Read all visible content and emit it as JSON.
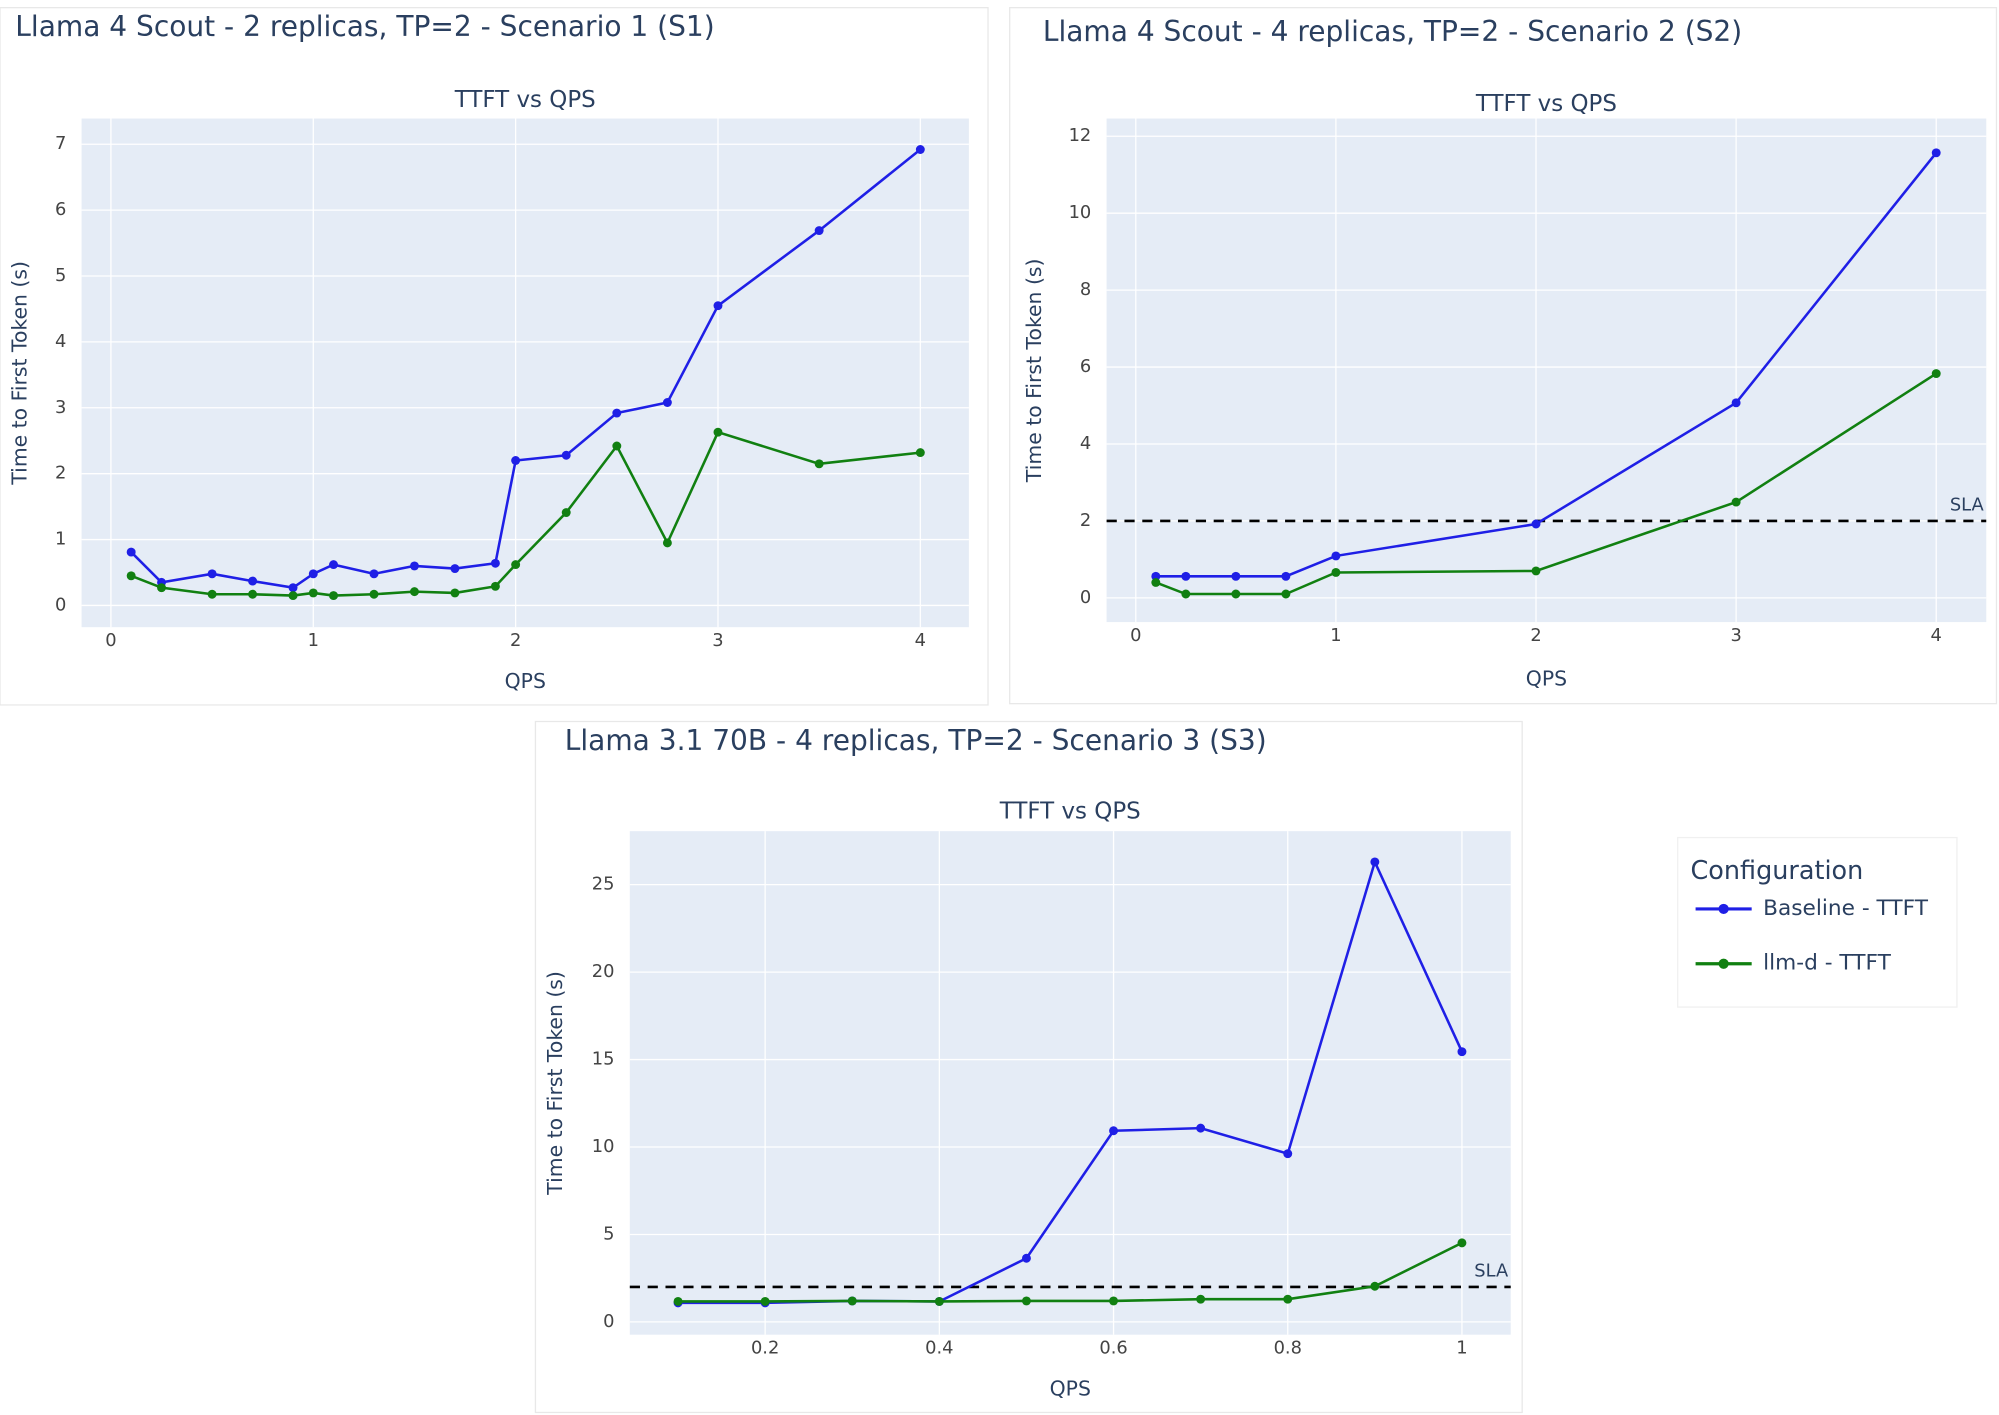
{
  "chart_data": [
    {
      "type": "line",
      "panel_title": "Llama 4 Scout - 2 replicas, TP=2 - Scenario 1 (S1)",
      "title": "TTFT vs QPS",
      "x_label": "QPS",
      "y_label": "Time to First Token (s)",
      "xlim": [
        -0.145,
        4.24
      ],
      "ylim": [
        -0.33,
        7.39
      ],
      "xticks": [
        0,
        1,
        2,
        3,
        4
      ],
      "yticks": [
        0,
        1,
        2,
        3,
        4,
        5,
        6,
        7
      ],
      "grid": true,
      "series": [
        {
          "name": "Baseline - TTFT",
          "color": "#1f1fe6",
          "x": [
            0.1,
            0.25,
            0.5,
            0.7,
            0.9,
            1.0,
            1.1,
            1.3,
            1.5,
            1.7,
            1.9,
            2.0,
            2.25,
            2.5,
            2.75,
            3,
            3.5,
            4
          ],
          "values": [
            0.81,
            0.35,
            0.48,
            0.37,
            0.27,
            0.48,
            0.62,
            0.48,
            0.6,
            0.56,
            0.64,
            2.2,
            2.28,
            2.92,
            3.08,
            4.55,
            5.69,
            6.92
          ]
        },
        {
          "name": "llm-d - TTFT",
          "color": "#118011",
          "x": [
            0.1,
            0.25,
            0.5,
            0.7,
            0.9,
            1.0,
            1.1,
            1.3,
            1.5,
            1.7,
            1.9,
            2.0,
            2.25,
            2.5,
            2.75,
            3,
            3.5,
            4
          ],
          "values": [
            0.45,
            0.27,
            0.17,
            0.17,
            0.15,
            0.19,
            0.15,
            0.17,
            0.21,
            0.19,
            0.29,
            0.62,
            1.41,
            2.42,
            0.95,
            2.63,
            2.15,
            2.32
          ]
        }
      ]
    },
    {
      "type": "line",
      "panel_title": "Llama 4 Scout - 4 replicas, TP=2 - Scenario 2 (S2)",
      "title": "TTFT vs QPS",
      "x_label": "QPS",
      "y_label": "Time to First Token (s)",
      "xlim": [
        -0.146,
        4.25
      ],
      "ylim": [
        -0.63,
        12.46
      ],
      "xticks": [
        0,
        1,
        2,
        3,
        4
      ],
      "yticks": [
        0,
        2,
        4,
        6,
        8,
        10,
        12
      ],
      "grid": true,
      "reference_line": {
        "value": 2,
        "label": "SLA",
        "style": "dashed",
        "color": "#000000"
      },
      "series": [
        {
          "name": "Baseline - TTFT",
          "color": "#1f1fe6",
          "x": [
            0.1,
            0.25,
            0.5,
            0.75,
            1,
            2,
            3,
            4
          ],
          "values": [
            0.56,
            0.56,
            0.56,
            0.56,
            1.09,
            1.92,
            5.07,
            11.57
          ]
        },
        {
          "name": "llm-d - TTFT",
          "color": "#118011",
          "x": [
            0.1,
            0.25,
            0.5,
            0.75,
            1,
            2,
            3,
            4
          ],
          "values": [
            0.4,
            0.1,
            0.1,
            0.1,
            0.66,
            0.7,
            2.49,
            5.83
          ]
        }
      ]
    },
    {
      "type": "line",
      "panel_title": "Llama 3.1 70B - 4 replicas, TP=2 - Scenario 3 (S3)",
      "title": "TTFT vs QPS",
      "x_label": "QPS",
      "y_label": "Time to First Token (s)",
      "xlim": [
        0.0446,
        1.056
      ],
      "ylim": [
        -0.73,
        28.06
      ],
      "xticks": [
        0.2,
        0.4,
        0.6,
        0.8,
        1
      ],
      "yticks": [
        0,
        5,
        10,
        15,
        20,
        25
      ],
      "grid": true,
      "reference_line": {
        "value": 2,
        "label": "SLA",
        "style": "dashed",
        "color": "#000000"
      },
      "series": [
        {
          "name": "Baseline - TTFT",
          "color": "#1f1fe6",
          "x": [
            0.1,
            0.2,
            0.3,
            0.4,
            0.5,
            0.6,
            0.7,
            0.8,
            0.9,
            1.0
          ],
          "values": [
            1.09,
            1.09,
            1.2,
            1.17,
            3.64,
            10.93,
            11.08,
            9.62,
            26.3,
            15.45
          ]
        },
        {
          "name": "llm-d - TTFT",
          "color": "#118011",
          "x": [
            0.1,
            0.2,
            0.3,
            0.4,
            0.5,
            0.6,
            0.7,
            0.8,
            0.9,
            1.0
          ],
          "values": [
            1.17,
            1.17,
            1.2,
            1.17,
            1.2,
            1.2,
            1.3,
            1.3,
            2.04,
            4.52
          ]
        }
      ]
    }
  ],
  "legend": {
    "title": "Configuration",
    "position": "right"
  }
}
